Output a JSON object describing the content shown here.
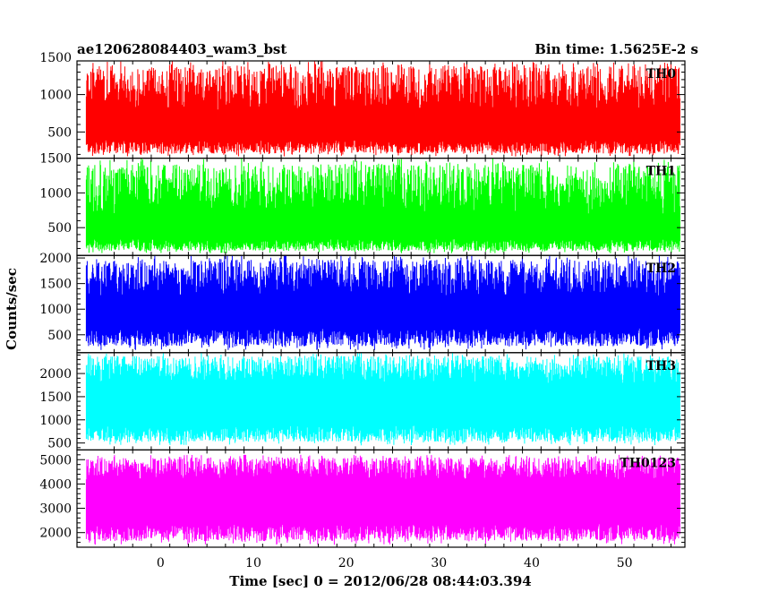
{
  "header": {
    "left_title": "ae120628084403_wam3_bst",
    "right_title": "Bin time: 1.5625E-2 s"
  },
  "chart_data": {
    "type": "line",
    "title": "ae120628084403_wam3_bst",
    "subtitle": "Bin time: 1.5625E-2 s",
    "xlabel": "Time [sec] 0 = 2012/06/28 08:44:03.394",
    "ylabel": "Counts/sec",
    "xlim": [
      -9,
      56.5
    ],
    "x_ticks": [
      0,
      10,
      20,
      30,
      40,
      50
    ],
    "x_tick_labels": [
      "0",
      "10",
      "20",
      "30",
      "40",
      "50"
    ],
    "data_x_range": [
      -8,
      56
    ],
    "bin_time_s": 0.015625,
    "grid": false,
    "panels": [
      {
        "name": "TH0",
        "color": "#ff0000",
        "ylim": [
          150,
          1450
        ],
        "y_ticks": [
          500,
          1000,
          1500
        ],
        "y_tick_labels": [
          "500",
          "1000",
          "1500"
        ],
        "typical_range": [
          300,
          1000
        ],
        "min": 170,
        "max": 1450,
        "mean": 650
      },
      {
        "name": "TH1",
        "color": "#00ff00",
        "ylim": [
          100,
          1500
        ],
        "y_ticks": [
          500,
          1000,
          1500
        ],
        "y_tick_labels": [
          "500",
          "1000",
          "1500"
        ],
        "typical_range": [
          250,
          950
        ],
        "min": 130,
        "max": 1500,
        "mean": 600
      },
      {
        "name": "TH2",
        "color": "#0000ff",
        "ylim": [
          150,
          2050
        ],
        "y_ticks": [
          500,
          1000,
          1500,
          2000
        ],
        "y_tick_labels": [
          "500",
          "1000",
          "1500",
          "2000"
        ],
        "typical_range": [
          450,
          1500
        ],
        "min": 200,
        "max": 2050,
        "mean": 950
      },
      {
        "name": "TH3",
        "color": "#00ffff",
        "ylim": [
          350,
          2450
        ],
        "y_ticks": [
          500,
          1000,
          1500,
          2000
        ],
        "y_tick_labels": [
          "500",
          "1000",
          "1500",
          "2000"
        ],
        "typical_range": [
          700,
          2000
        ],
        "min": 450,
        "max": 2450,
        "mean": 1350
      },
      {
        "name": "TH0123",
        "color": "#ff00ff",
        "ylim": [
          1400,
          5400
        ],
        "y_ticks": [
          2000,
          3000,
          4000,
          5000
        ],
        "y_tick_labels": [
          "2000",
          "3000",
          "4000",
          "5000"
        ],
        "typical_range": [
          2000,
          4500
        ],
        "min": 1500,
        "max": 5200,
        "mean": 3300
      }
    ]
  }
}
